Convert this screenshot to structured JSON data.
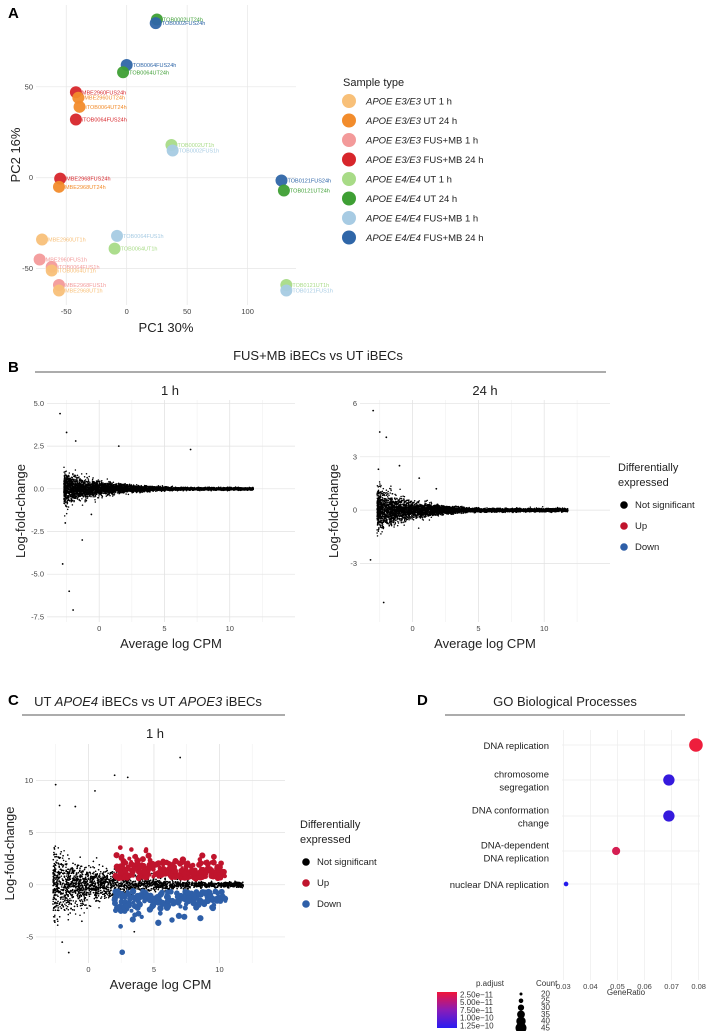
{
  "panels": {
    "a": "A",
    "b": "B",
    "c": "C",
    "d": "D"
  },
  "colors": {
    "e33_ut1": "#f8c079",
    "e33_ut24": "#f28c2c",
    "e33_fus1": "#f39a9a",
    "e33_fus24": "#d7262b",
    "e44_ut1": "#a8db87",
    "e44_ut24": "#3e9f34",
    "e44_fus1": "#a7cbe3",
    "e44_fus24": "#2f66a8",
    "black": "#000000",
    "up": "#c0142d",
    "down": "#2e5fa8"
  },
  "chart_data": [
    {
      "id": "pca",
      "type": "scatter",
      "xlabel": "PC1 30%",
      "ylabel": "PC2 16%",
      "xlim": [
        -75,
        140
      ],
      "ylim": [
        -70,
        95
      ],
      "xticks": [
        -50,
        0,
        50,
        100
      ],
      "yticks": [
        -50,
        0,
        50
      ],
      "legend_title": "Sample type",
      "legend": [
        {
          "genotype": "APOE E3/E3",
          "cond": "UT 1 h",
          "color": "e33_ut1"
        },
        {
          "genotype": "APOE E3/E3",
          "cond": "UT 24 h",
          "color": "e33_ut24"
        },
        {
          "genotype": "APOE E3/E3",
          "cond": "FUS+MB 1 h",
          "color": "e33_fus1"
        },
        {
          "genotype": "APOE E3/E3",
          "cond": "FUS+MB 24 h",
          "color": "e33_fus24"
        },
        {
          "genotype": "APOE E4/E4",
          "cond": "UT 1 h",
          "color": "e44_ut1"
        },
        {
          "genotype": "APOE E4/E4",
          "cond": "UT 24 h",
          "color": "e44_ut24"
        },
        {
          "genotype": "APOE E4/E4",
          "cond": "FUS+MB 1 h",
          "color": "e44_fus1"
        },
        {
          "genotype": "APOE E4/E4",
          "cond": "FUS+MB 24 h",
          "color": "e44_fus24"
        }
      ],
      "points": [
        {
          "x": 25,
          "y": 87,
          "label": "TOB0002UT24h",
          "color": "e44_ut24"
        },
        {
          "x": 24,
          "y": 85,
          "label": "TOB0002FUS24h",
          "color": "e44_fus24"
        },
        {
          "x": 0,
          "y": 62,
          "label": "TOB0064FUS24h",
          "color": "e44_fus24"
        },
        {
          "x": -3,
          "y": 58,
          "label": "TOB0064UT24h",
          "color": "e44_ut24"
        },
        {
          "x": -42,
          "y": 47,
          "label": "MBE2960FUS24h",
          "color": "e33_fus24"
        },
        {
          "x": -40,
          "y": 44,
          "label": "MBE2960UT24h",
          "color": "e33_ut24"
        },
        {
          "x": -39,
          "y": 39,
          "label": "iTOB0064UT24h",
          "color": "e33_ut24"
        },
        {
          "x": -42,
          "y": 32,
          "label": "iTOB0064FUS24h",
          "color": "e33_fus24"
        },
        {
          "x": 37,
          "y": 18,
          "label": "TOB0002UT1h",
          "color": "e44_ut1"
        },
        {
          "x": 38,
          "y": 15,
          "label": "TOB0002FUS1h",
          "color": "e44_fus1"
        },
        {
          "x": -55,
          "y": -0.5,
          "label": "MBE2968FUS24h",
          "color": "e33_fus24"
        },
        {
          "x": -56,
          "y": -5,
          "label": "MBE2968UT24h",
          "color": "e33_ut24"
        },
        {
          "x": 128,
          "y": -1.5,
          "label": "TOB0121FUS24h",
          "color": "e44_fus24"
        },
        {
          "x": 130,
          "y": -7,
          "label": "TOB0121UT24h",
          "color": "e44_ut24"
        },
        {
          "x": -70,
          "y": -34,
          "label": "MBE2960UT1h",
          "color": "e33_ut1"
        },
        {
          "x": -8,
          "y": -32,
          "label": "TOB0064FUS1h",
          "color": "e44_fus1"
        },
        {
          "x": -10,
          "y": -39,
          "label": "TOB0064UT1h",
          "color": "e44_ut1"
        },
        {
          "x": -72,
          "y": -45,
          "label": "MBE2960FUS1h",
          "color": "e33_fus1"
        },
        {
          "x": -62,
          "y": -49,
          "label": "iTOB0064FUS1h",
          "color": "e33_fus1"
        },
        {
          "x": -62,
          "y": -51,
          "label": "iTOB0064UT1h",
          "color": "e33_ut1"
        },
        {
          "x": -56,
          "y": -59,
          "label": "MBE2968FUS1h",
          "color": "e33_fus1"
        },
        {
          "x": -56,
          "y": -62,
          "label": "MBE2968UT1h",
          "color": "e33_ut1"
        },
        {
          "x": 132,
          "y": -59,
          "label": "TOB0121UT1h",
          "color": "e44_ut1"
        },
        {
          "x": 132,
          "y": -62,
          "label": "TOB0121FUS1h",
          "color": "e44_fus1"
        }
      ]
    },
    {
      "id": "ma_1h",
      "type": "scatter",
      "section_title": "FUS+MB iBECs vs UT iBECs",
      "title": "1 h",
      "xlabel": "Average log CPM",
      "ylabel": "Log-fold-change",
      "xlim": [
        -4,
        15
      ],
      "ylim": [
        -7.8,
        5.2
      ],
      "xticks": [
        0,
        5,
        10
      ],
      "yticks": [
        -7.5,
        -5.0,
        -2.5,
        0.0,
        2.5,
        5.0
      ],
      "ytick_labels": [
        "-7.5",
        "-5.0",
        "-2.5",
        "0.0",
        "2.5",
        "5.0"
      ],
      "outliers": [
        [
          -3,
          4.4
        ],
        [
          -2.5,
          3.3
        ],
        [
          -1.8,
          2.8
        ],
        [
          -2.8,
          -4.4
        ],
        [
          -2.3,
          -6.0
        ],
        [
          -2.0,
          -7.1
        ],
        [
          -1.3,
          -3.0
        ],
        [
          1.5,
          2.5
        ],
        [
          7,
          2.3
        ],
        [
          -2.6,
          -2.0
        ],
        [
          -0.6,
          -1.5
        ]
      ]
    },
    {
      "id": "ma_24h",
      "type": "scatter",
      "title": "24 h",
      "xlabel": "Average log CPM",
      "ylabel": "Log-fold-change",
      "xlim": [
        -4,
        15
      ],
      "ylim": [
        -6.3,
        6.2
      ],
      "xticks": [
        0,
        5,
        10
      ],
      "yticks": [
        -3,
        0,
        3,
        6
      ],
      "ytick_labels": [
        "-3",
        "0",
        "3",
        "6"
      ],
      "outliers": [
        [
          -3,
          5.6
        ],
        [
          -2.5,
          4.4
        ],
        [
          -2,
          4.1
        ],
        [
          -2.2,
          -5.2
        ],
        [
          -3.2,
          -2.8
        ],
        [
          0.5,
          1.8
        ],
        [
          -1,
          2.5
        ],
        [
          -2.6,
          2.3
        ],
        [
          1.8,
          1.2
        ]
      ]
    },
    {
      "id": "ma_apoe",
      "type": "scatter",
      "section_title_pre": "UT ",
      "section_title_g1": "APOE4",
      "section_title_mid": " iBECs vs UT ",
      "section_title_g2": "APOE3",
      "section_title_post": " iBECs",
      "title": "1 h",
      "xlabel": "Average log CPM",
      "ylabel": "Log-fold-change",
      "xlim": [
        -4,
        15
      ],
      "ylim": [
        -7.5,
        13.5
      ],
      "xticks": [
        0,
        5,
        10
      ],
      "yticks": [
        -5,
        0,
        5,
        10
      ],
      "ytick_labels": [
        "-5",
        "0",
        "5",
        "10"
      ],
      "outliers": [
        [
          7,
          12.2
        ],
        [
          2,
          10.5
        ],
        [
          3,
          10.3
        ],
        [
          -2.5,
          9.6
        ],
        [
          0.5,
          9
        ],
        [
          -1,
          7.5
        ],
        [
          -2,
          -5.5
        ],
        [
          -1.5,
          -6.5
        ],
        [
          3.5,
          -4.5
        ],
        [
          -0.5,
          -3.5
        ],
        [
          -2.2,
          7.6
        ]
      ]
    },
    {
      "id": "go",
      "type": "scatter",
      "title": "GO Biological Processes",
      "xlabel": "GeneRatio",
      "xlim": [
        0.0295,
        0.0805
      ],
      "xticks": [
        0.03,
        0.04,
        0.05,
        0.06,
        0.07,
        0.08
      ],
      "xtick_labels": [
        "0.03",
        "0.04",
        "0.05",
        "0.06",
        "0.07",
        "0.08"
      ],
      "terms": [
        {
          "label": [
            "DNA replication"
          ],
          "generatio": 0.079,
          "count": 45,
          "p_adjust": 1e-11
        },
        {
          "label": [
            "chromosome",
            "segregation"
          ],
          "generatio": 0.069,
          "count": 38,
          "p_adjust": 1.2e-10
        },
        {
          "label": [
            "DNA conformation",
            "change"
          ],
          "generatio": 0.069,
          "count": 38,
          "p_adjust": 1.2e-10
        },
        {
          "label": [
            "DNA-dependent",
            "DNA replication"
          ],
          "generatio": 0.0495,
          "count": 28,
          "p_adjust": 2.5e-11
        },
        {
          "label": [
            "nuclear DNA replication"
          ],
          "generatio": 0.031,
          "count": 17,
          "p_adjust": 1.3e-10
        }
      ],
      "colorbar_title": "p.adjust",
      "colorbar_ticks": [
        "2.50e−11",
        "5.00e−11",
        "7.50e−11",
        "1.00e−10",
        "1.25e−10"
      ],
      "size_title": "Count",
      "size_ticks": [
        20,
        25,
        30,
        35,
        40,
        45
      ]
    }
  ],
  "de_legend": {
    "title1": "Differentially",
    "title2": "expressed",
    "items": [
      {
        "label": "Not significant",
        "color": "black"
      },
      {
        "label": "Up",
        "color": "up"
      },
      {
        "label": "Down",
        "color": "down"
      }
    ]
  }
}
